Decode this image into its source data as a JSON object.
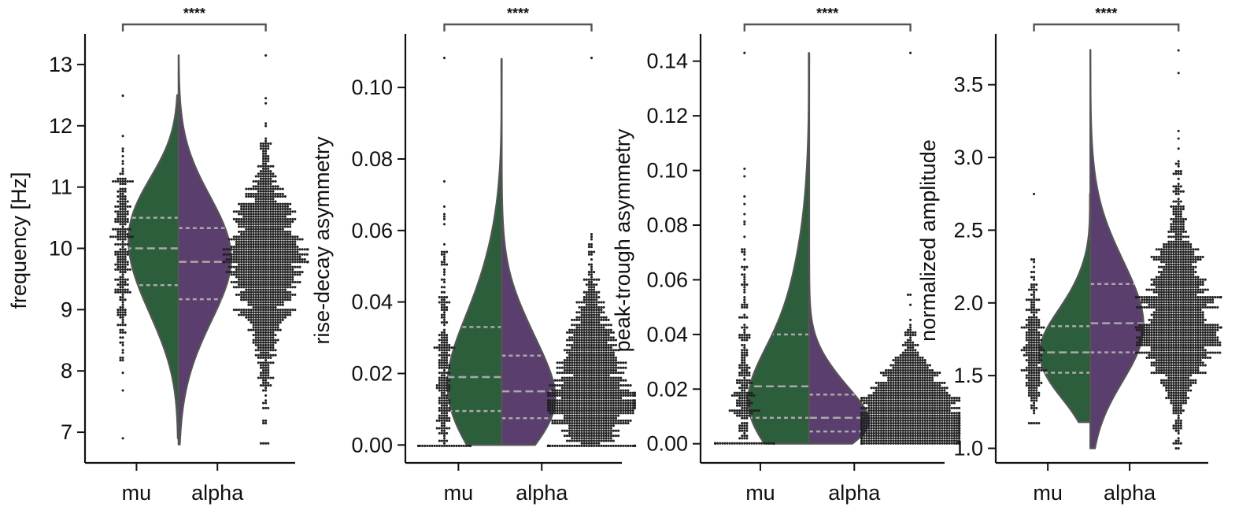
{
  "colors": {
    "mu": "#2d5e3c",
    "alpha": "#5a3e6e",
    "outline": "#555555",
    "quartile": "#a9a9a9",
    "points": "#222222",
    "axis": "#111111"
  },
  "chart_data": [
    {
      "type": "violin",
      "categories": [
        "mu",
        "alpha"
      ],
      "ylabel": "frequency [Hz]",
      "yticks": [
        "7",
        "8",
        "9",
        "10",
        "11",
        "12",
        "13"
      ],
      "ylim": [
        6.5,
        13.5
      ],
      "significance": "****",
      "series": [
        {
          "name": "mu",
          "median": 10.0,
          "q1": 9.4,
          "q3": 10.5,
          "min": 6.9,
          "max": 12.5,
          "n": 260
        },
        {
          "name": "alpha",
          "median": 9.78,
          "q1": 9.17,
          "q3": 10.33,
          "min": 6.8,
          "max": 13.15,
          "n": 1500
        }
      ]
    },
    {
      "type": "violin",
      "categories": [
        "mu",
        "alpha"
      ],
      "ylabel": "rise-decay asymmetry",
      "yticks": [
        "0.00",
        "0.02",
        "0.04",
        "0.06",
        "0.08",
        "0.10"
      ],
      "ylim": [
        -0.005,
        0.115
      ],
      "significance": "****",
      "series": [
        {
          "name": "mu",
          "median": 0.019,
          "q1": 0.0095,
          "q3": 0.033,
          "min": 0.0,
          "max": 0.108,
          "n": 260
        },
        {
          "name": "alpha",
          "median": 0.015,
          "q1": 0.0075,
          "q3": 0.025,
          "min": 0.0,
          "max": 0.108,
          "n": 1500
        }
      ]
    },
    {
      "type": "violin",
      "categories": [
        "mu",
        "alpha"
      ],
      "ylabel": "peak-trough asymmetry",
      "yticks": [
        "0.00",
        "0.02",
        "0.04",
        "0.06",
        "0.08",
        "0.10",
        "0.12",
        "0.14"
      ],
      "ylim": [
        -0.007,
        0.15
      ],
      "significance": "****",
      "series": [
        {
          "name": "mu",
          "median": 0.021,
          "q1": 0.0095,
          "q3": 0.04,
          "min": 0.0,
          "max": 0.143,
          "n": 260
        },
        {
          "name": "alpha",
          "median": 0.0095,
          "q1": 0.0045,
          "q3": 0.018,
          "min": 0.0,
          "max": 0.143,
          "n": 1500
        }
      ]
    },
    {
      "type": "violin",
      "categories": [
        "mu",
        "alpha"
      ],
      "ylabel": "normalized amplitude",
      "yticks": [
        "1.0",
        "1.5",
        "2.0",
        "2.5",
        "3.0",
        "3.5"
      ],
      "ylim": [
        0.9,
        3.85
      ],
      "significance": "****",
      "series": [
        {
          "name": "mu",
          "median": 1.66,
          "q1": 1.52,
          "q3": 1.84,
          "min": 1.18,
          "max": 2.75,
          "n": 260
        },
        {
          "name": "alpha",
          "median": 1.86,
          "q1": 1.66,
          "q3": 2.13,
          "min": 1.0,
          "max": 3.74,
          "n": 1500
        }
      ]
    }
  ]
}
